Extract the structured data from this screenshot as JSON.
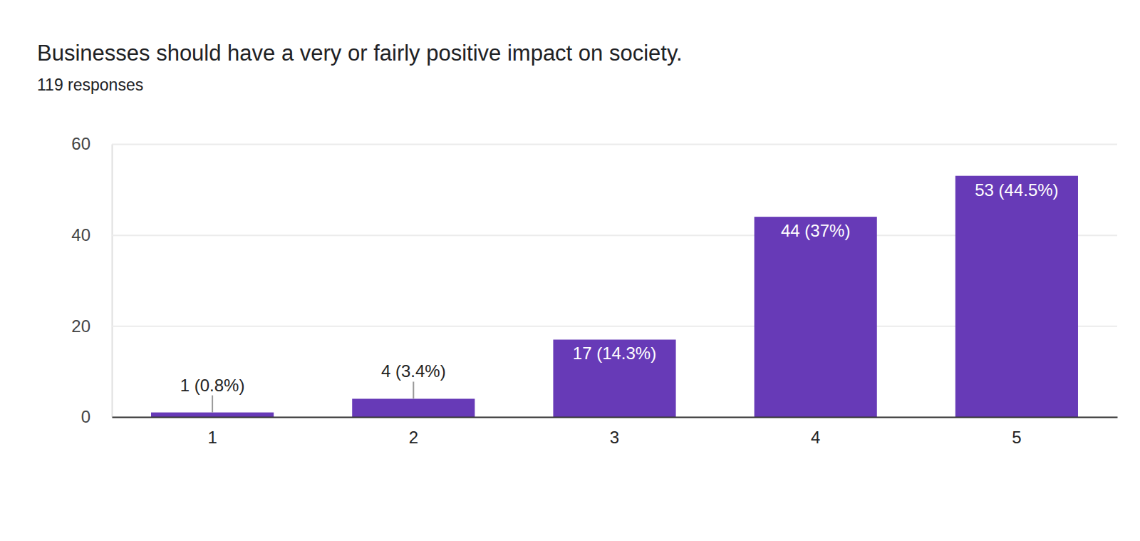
{
  "chart_data": {
    "type": "bar",
    "title": "Businesses should have a very or fairly positive impact on society.",
    "subtitle": "119 responses",
    "categories": [
      "1",
      "2",
      "3",
      "4",
      "5"
    ],
    "values": [
      1,
      4,
      17,
      44,
      53
    ],
    "value_labels": [
      "1 (0.8%)",
      "4 (3.4%)",
      "17 (14.3%)",
      "44 (37%)",
      "53 (44.5%)"
    ],
    "color": "#673ab7",
    "ylim": [
      0,
      60
    ],
    "yticks": [
      0,
      20,
      40,
      60
    ],
    "grid": true,
    "data_labels": true
  }
}
